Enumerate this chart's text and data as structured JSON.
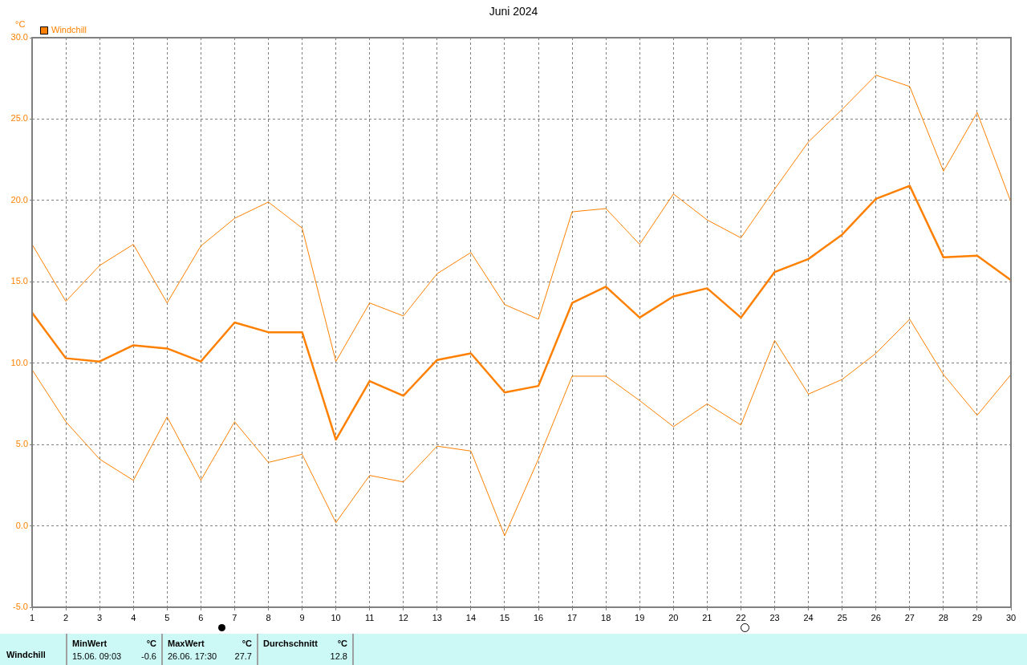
{
  "chart_data": {
    "type": "line",
    "title": "Juni 2024",
    "ylabel": "°C",
    "x": [
      1,
      2,
      3,
      4,
      5,
      6,
      7,
      8,
      9,
      10,
      11,
      12,
      13,
      14,
      15,
      16,
      17,
      18,
      19,
      20,
      21,
      22,
      23,
      24,
      25,
      26,
      27,
      28,
      29,
      30
    ],
    "series": [
      {
        "color": "#ff8000",
        "values": [
          17.3,
          13.8,
          16.0,
          17.3,
          13.7,
          17.2,
          18.9,
          19.9,
          18.3,
          10.1,
          13.7,
          12.9,
          15.5,
          16.8,
          13.6,
          12.7,
          19.3,
          19.5,
          17.3,
          20.4,
          18.8,
          17.7,
          20.7,
          23.6,
          25.6,
          27.7,
          27.0,
          21.8,
          25.4,
          19.9
        ]
      },
      {
        "name": "Windchill",
        "color": "#ff8000",
        "values": [
          13.1,
          10.3,
          10.1,
          11.1,
          10.9,
          10.1,
          12.5,
          11.9,
          11.9,
          5.3,
          8.9,
          8.0,
          10.2,
          10.6,
          8.2,
          8.6,
          13.7,
          14.7,
          12.8,
          14.1,
          14.6,
          12.8,
          15.6,
          16.4,
          17.9,
          20.1,
          20.9,
          16.5,
          16.6,
          15.1
        ]
      },
      {
        "color": "#ff8000",
        "values": [
          9.6,
          6.4,
          4.1,
          2.8,
          6.7,
          2.8,
          6.4,
          3.9,
          4.4,
          0.2,
          3.1,
          2.7,
          4.9,
          4.6,
          -0.6,
          4.1,
          9.2,
          9.2,
          7.7,
          6.1,
          7.5,
          6.2,
          11.4,
          8.1,
          9.0,
          10.6,
          12.7,
          9.3,
          6.8,
          9.3
        ]
      }
    ],
    "xlim": [
      1,
      30
    ],
    "xticks": [
      1,
      2,
      3,
      4,
      5,
      6,
      7,
      8,
      9,
      10,
      11,
      12,
      13,
      14,
      15,
      16,
      17,
      18,
      19,
      20,
      21,
      22,
      23,
      24,
      25,
      26,
      27,
      28,
      29,
      30
    ],
    "ylim": [
      -5,
      30
    ],
    "yticks": [
      {
        "value": -5,
        "label": "-5.0"
      },
      {
        "value": 0,
        "label": "0.0"
      },
      {
        "value": 5,
        "label": "5.0"
      },
      {
        "value": 10,
        "label": "10.0"
      },
      {
        "value": 15,
        "label": "15.0"
      },
      {
        "value": 20,
        "label": "20.0"
      },
      {
        "value": 25,
        "label": "25.0"
      },
      {
        "value": 30,
        "label": "30.0"
      }
    ],
    "grid": true,
    "legend": "top left",
    "marker": "none",
    "line_style": "solid",
    "annotations": [
      "Windchill",
      "MinWert",
      "°C",
      "15.06.  09:03",
      "-0.6",
      "MaxWert",
      "°C",
      "26.06.  17:30",
      "27.7",
      "Durchschnitt",
      "°C",
      "12.8"
    ]
  }
}
